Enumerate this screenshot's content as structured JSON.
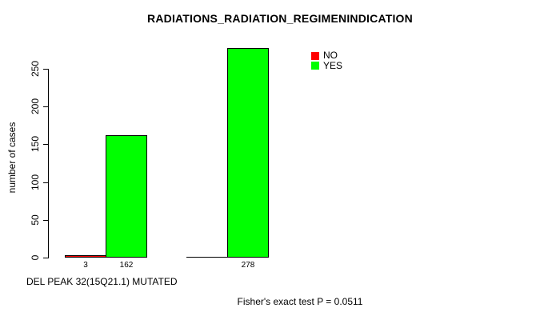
{
  "chart_data": {
    "type": "bar",
    "title": "RADIATIONS_RADIATION_REGIMENINDICATION",
    "ylabel": "number of cases",
    "xlabel": "DEL PEAK 32(15Q21.1) MUTATED",
    "footnote": "Fisher's exact test P = 0.0511",
    "yticks": [
      0,
      50,
      100,
      150,
      200,
      250
    ],
    "ylim": [
      0,
      280
    ],
    "grid": false,
    "legend_position": "top-right",
    "background_color": "#ffffff",
    "bar_border_color": "#000000",
    "text_color": "#000000",
    "series": [
      {
        "name": "NO",
        "color": "#ff0000",
        "values": [
          3,
          0
        ],
        "value_labels": [
          "3",
          ""
        ]
      },
      {
        "name": "YES",
        "color": "#00ff00",
        "values": [
          162,
          278
        ],
        "value_labels": [
          "162",
          "278"
        ]
      }
    ]
  }
}
